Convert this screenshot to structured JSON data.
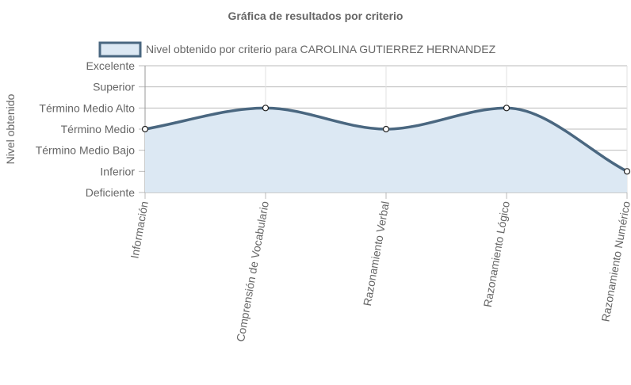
{
  "chart_data": {
    "type": "line",
    "title": "Gráfica de resultados por criterio",
    "ylabel": "Nivel obtenido",
    "xlabel": "",
    "categories": [
      "Información",
      "Comprensión de Vocabulario",
      "Razonamiento Verbal",
      "Razonamiento Lógico",
      "Razonamiento Numérico"
    ],
    "y_levels": [
      "Deficiente",
      "Inferior",
      "Término Medio Bajo",
      "Término Medio",
      "Término Medio Alto",
      "Superior",
      "Excelente"
    ],
    "series": [
      {
        "name": "Nivel obtenido por criterio para CAROLINA GUTIERREZ HERNANDEZ",
        "values": [
          "Término Medio",
          "Término Medio Alto",
          "Término Medio",
          "Término Medio Alto",
          "Inferior"
        ],
        "fill": true
      }
    ],
    "legend": "top",
    "grid": true,
    "colors": {
      "line": "#4a6780",
      "fill": "#dce8f3",
      "grid": "#bbbbbb",
      "text": "#666666"
    }
  }
}
